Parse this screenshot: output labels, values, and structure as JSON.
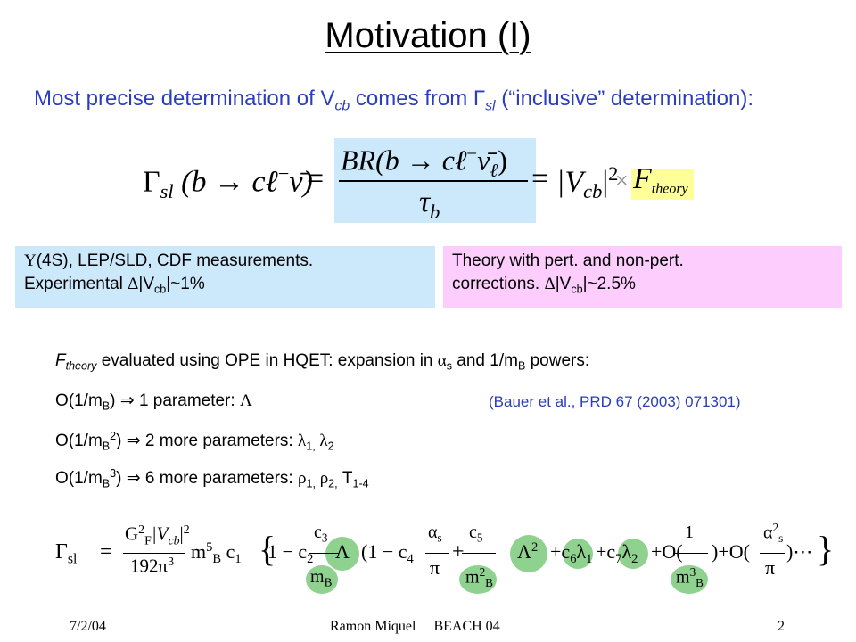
{
  "title": "Motivation (I)",
  "subtitle": {
    "pre": "Most precise determination of V",
    "sub": "cb",
    "mid": " comes from ",
    "gamma": "Γ",
    "gamma_sub": "sl",
    "post": " (“inclusive” determination):"
  },
  "eq1": {
    "lhs": "Γ",
    "lhs_sub": "sl",
    "lhs_arg": "(b → cℓ",
    "lhs_arg_sup": "−",
    "lhs_nu": "ν̄)",
    "eq": "=",
    "num": "BR(b → cℓ",
    "num_sup": "−",
    "num_nu": "ν̄",
    "num_nu_sub": "ℓ",
    "num_end": ")",
    "den": "τ",
    "den_sub": "b",
    "eq2": "=",
    "vcb": "|V",
    "vcb_sub": "cb",
    "vcb_end": "|",
    "vcb_sup": "2",
    "times": "×",
    "F": "F",
    "F_sub": "theory"
  },
  "box_exp": {
    "l1_pre": "Υ",
    "l1_post": "(4S), LEP/SLD, CDF measurements.",
    "l2_pre": "Experimental  ",
    "l2_delta": "Δ",
    "l2_v": "|V",
    "l2_sub": "cb",
    "l2_post": "|~1%"
  },
  "box_theory": {
    "l1": "Theory with pert. and non-pert.",
    "l2_pre": "corrections.  ",
    "l2_delta": "Δ",
    "l2_v": "|V",
    "l2_sub": "cb",
    "l2_post": "|~2.5%"
  },
  "ope": {
    "F": "F",
    "F_sub": "theory",
    "l1_mid": "  evaluated using OPE in HQET: expansion in ",
    "alpha": "α",
    "alpha_sub": "s",
    "l1_and": " and 1/m",
    "mB_sub": "B",
    "l1_end": "  powers:",
    "o1_pre": "O(1/m",
    "o1_sub": "B",
    "o1_post": ")  ⇒ 1 parameter:  ",
    "o1_param": "Λ",
    "ref": "(Bauer et al., PRD 67 (2003) 071301)",
    "o2_pre": "O(1/m",
    "o2_sub": "B",
    "o2_sup": "2",
    "o2_post": ")  ⇒ 2 more parameters:  ",
    "o2_l1": "λ",
    "o2_l1_sub": "1,",
    "o2_l2": " λ",
    "o2_l2_sub": "2",
    "o3_pre": "O(1/m",
    "o3_sub": "B",
    "o3_sup": "3",
    "o3_post": ")  ⇒ 6 more parameters:  ",
    "o3_r1": "ρ",
    "o3_r1_sub": "1,",
    "o3_r2": " ρ",
    "o3_r2_sub": "2,",
    "o3_T": " T",
    "o3_T_sub": "1-4"
  },
  "eq2": {
    "gamma": "Γ",
    "gamma_sub": "sl",
    "eq": "=",
    "num": "G",
    "num_sup": "2",
    "num_sub": "F",
    "num_v": "|V",
    "num_v_sub": "cb",
    "num_v_end": "|",
    "num_v_sup": "2",
    "den": "192π",
    "den_sup": "3",
    "mb": "m",
    "mb_sup": "5",
    "mb_sub": "B",
    "c1": " c",
    "c1_sub": "1",
    "brace_open": "{",
    "t1": "1 − c",
    "t1_sub": "2",
    "alpha": "α",
    "alpha_sub": "s",
    "pi": "π",
    "plus": "+",
    "c3": "c",
    "c3_sub": "3",
    "mB": "m",
    "mB_sub": "B",
    "Lambda": "Λ",
    "paren_t": "(1 − c",
    "c4_sub": "4",
    "c5": "c",
    "c5_sub": "5",
    "mB2": "m",
    "mB2_sup": "2",
    "mB2_sub": "B",
    "Lambda2": "Λ",
    "Lambda2_sup": "2",
    "c6": "c",
    "c6_sub": "6",
    "l1": "λ",
    "l1_sub": "1",
    "c7": "c",
    "c7_sub": "7",
    "l2": "λ",
    "l2_sub": "2",
    "O": "O(",
    "one": "1",
    "mB3": "m",
    "mB3_sup": "3",
    "mB3_sub": "B",
    "O2": "O(",
    "alpha2": "α",
    "alpha2_sup": "2",
    "alpha2_sub": "s",
    "dots": ")⋯",
    "brace_close": "}"
  },
  "footer": {
    "date": "7/2/04",
    "author": "Ramon Miquel     BEACH 04",
    "page": "2"
  },
  "colors": {
    "blue_text": "#2a3dbd",
    "box_blue": "#cce8fb",
    "box_pink": "#fdcdfd",
    "highlight_yellow": "#ffff99",
    "circle_green": "#8fd18f"
  }
}
